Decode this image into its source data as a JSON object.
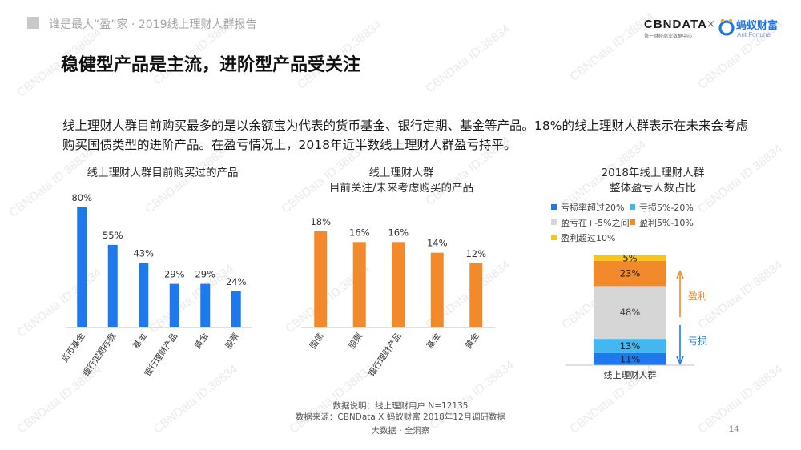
{
  "header": {
    "text": "谁是最大“盈”家 · 2019线上理财人群报告"
  },
  "logos": {
    "cbn": "CBNDATA",
    "cbn_sub": "第一财经商业数据中心",
    "x": "×",
    "ant": "蚂蚁财富",
    "ant_sub": "Ant Fortune"
  },
  "page_title": "稳健型产品是主流，进阶型产品受关注",
  "description": "线上理财人群目前购买最多的是以余额宝为代表的货币基金、银行定期、基金等产品。18%的线上理财人群表示在未来会考虑购买国债类型的进阶产品。在盈亏情况上，2018年近半数线上理财人群盈亏持平。",
  "watermark": "CBNData ID:38834",
  "colors": {
    "blue": "#1e79ed",
    "orange": "#f2892b",
    "grey": "#d6d6d6",
    "light_blue": "#46b6ee",
    "yellow": "#f5c518",
    "arrow_orange": "#f2892b",
    "arrow_blue": "#1e79ed"
  },
  "chart_titles": {
    "c1": "线上理财人群目前购买过的产品",
    "c2_line1": "线上理财人群",
    "c2_line2": "目前关注/未来考虑购买的产品",
    "c3_line1": "2018年线上理财人群",
    "c3_line2": "整体盈亏人数占比"
  },
  "chart_data": [
    {
      "type": "bar",
      "title": "线上理财人群目前购买过的产品",
      "categories": [
        "货币基金",
        "银行定期存款",
        "基金",
        "银行理财产品",
        "黄金",
        "股票"
      ],
      "values": [
        80,
        55,
        43,
        29,
        29,
        24
      ],
      "labels": [
        "80%",
        "55%",
        "43%",
        "29%",
        "29%",
        "24%"
      ],
      "unit": "%",
      "color": "#1e79ed",
      "grid": false
    },
    {
      "type": "bar",
      "title": "线上理财人群 目前关注/未来考虑购买的产品",
      "categories": [
        "国债",
        "股票",
        "银行理财产品",
        "基金",
        "黄金"
      ],
      "values": [
        18,
        16,
        16,
        14,
        12
      ],
      "labels": [
        "18%",
        "16%",
        "16%",
        "14%",
        "12%"
      ],
      "unit": "%",
      "color": "#f2892b",
      "grid": false
    },
    {
      "type": "bar",
      "stacked": true,
      "title": "2018年线上理财人群 整体盈亏人数占比",
      "categories": [
        "线上理财人群"
      ],
      "series": [
        {
          "name": "亏损率超过20%",
          "values": [
            0
          ],
          "color": "#1e79ed"
        },
        {
          "name": "亏损5%-20%",
          "values": [
            0
          ],
          "color": "#46b6ee"
        },
        {
          "name": "盈亏在+-5%之间",
          "values": [
            0
          ],
          "color": "#d6d6d6"
        },
        {
          "name": "盈利5%-10%",
          "values": [
            0
          ],
          "color": "#f2892b"
        },
        {
          "name": "盈利超过10%",
          "values": [
            0
          ],
          "color": "#f5c518"
        }
      ],
      "stack_values": [
        11,
        13,
        48,
        23,
        5
      ],
      "stack_labels": [
        "11%",
        "13%",
        "48%",
        "23%",
        "5%"
      ],
      "legend_position": "top",
      "annotations": {
        "profit": "盈利",
        "loss": "亏损"
      }
    }
  ],
  "footnote": {
    "line1": "数据说明：线上理财用户 N=12135",
    "line2": "数据来源：CBNData X 蚂蚁财富 2018年12月调研数据"
  },
  "footer": "大数据 · 全洞察",
  "page_number": "14"
}
